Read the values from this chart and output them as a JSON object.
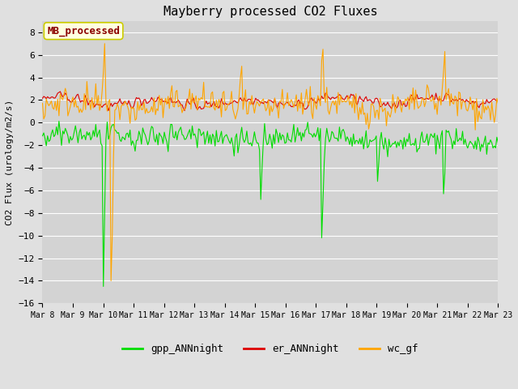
{
  "title": "Mayberry processed CO2 Fluxes",
  "ylabel": "CO2 Flux (urology/m2/s)",
  "ylim": [
    -16,
    9
  ],
  "yticks": [
    -16,
    -14,
    -12,
    -10,
    -8,
    -6,
    -4,
    -2,
    0,
    2,
    4,
    6,
    8
  ],
  "start_day": 8,
  "end_day": 23,
  "n_points": 360,
  "bg_color": "#e0e0e0",
  "plot_bg_color": "#d3d3d3",
  "grid_color": "#ffffff",
  "legend_label": "MB_processed",
  "legend_text_color": "#8b0000",
  "legend_box_color": "#ffffe0",
  "line_colors": {
    "gpp": "#00dd00",
    "er": "#dd0000",
    "wc": "#ffa500"
  },
  "legend_entries": [
    "gpp_ANNnight",
    "er_ANNnight",
    "wc_gf"
  ],
  "seed": 42,
  "font_family": "monospace",
  "title_fontsize": 11,
  "label_fontsize": 8,
  "tick_fontsize": 8,
  "legend_fontsize": 9
}
